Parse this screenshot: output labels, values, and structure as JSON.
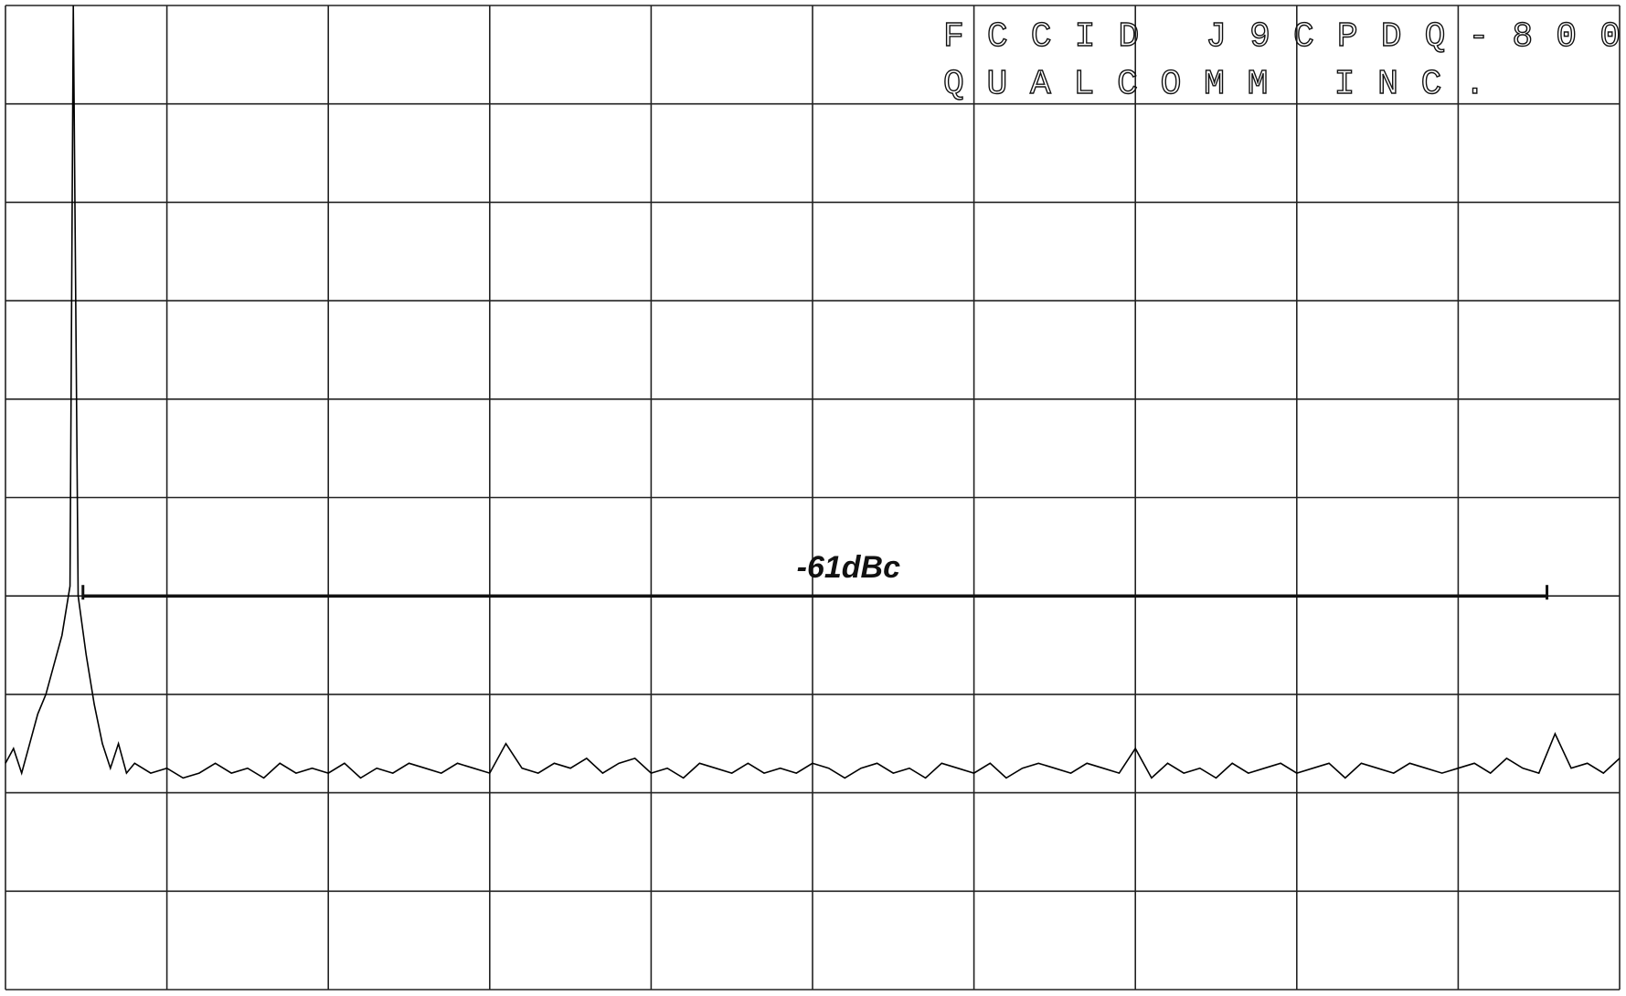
{
  "chart_data": {
    "type": "line",
    "title_lines": [
      "FCCID J9CPDQ-800",
      "QUALCOMM INC."
    ],
    "x": [
      0,
      0.05,
      0.1,
      0.15,
      0.2,
      0.25,
      0.3,
      0.35,
      0.4,
      0.42,
      0.45,
      0.5,
      0.55,
      0.6,
      0.65,
      0.7,
      0.75,
      0.8,
      0.9,
      1.0,
      1.1,
      1.2,
      1.3,
      1.4,
      1.5,
      1.6,
      1.7,
      1.8,
      1.9,
      2.0,
      2.1,
      2.2,
      2.3,
      2.4,
      2.5,
      2.6,
      2.7,
      2.8,
      2.9,
      3.0,
      3.1,
      3.2,
      3.3,
      3.4,
      3.5,
      3.6,
      3.7,
      3.8,
      3.9,
      4.0,
      4.1,
      4.2,
      4.3,
      4.4,
      4.5,
      4.6,
      4.7,
      4.8,
      4.9,
      5.0,
      5.1,
      5.2,
      5.3,
      5.4,
      5.5,
      5.6,
      5.7,
      5.8,
      5.9,
      6.0,
      6.1,
      6.2,
      6.3,
      6.4,
      6.5,
      6.6,
      6.7,
      6.8,
      6.9,
      7.0,
      7.1,
      7.2,
      7.3,
      7.4,
      7.5,
      7.6,
      7.7,
      7.8,
      7.9,
      8.0,
      8.1,
      8.2,
      8.3,
      8.4,
      8.5,
      8.6,
      8.7,
      8.8,
      8.9,
      9.0,
      9.1,
      9.2,
      9.3,
      9.4,
      9.5,
      9.6,
      9.7,
      9.8,
      9.9,
      10.0
    ],
    "values": [
      2.3,
      2.45,
      2.2,
      2.5,
      2.8,
      3.0,
      3.3,
      3.6,
      4.1,
      10,
      4.0,
      3.4,
      2.9,
      2.5,
      2.25,
      2.5,
      2.2,
      2.3,
      2.2,
      2.25,
      2.15,
      2.2,
      2.3,
      2.2,
      2.25,
      2.15,
      2.3,
      2.2,
      2.25,
      2.2,
      2.3,
      2.15,
      2.25,
      2.2,
      2.3,
      2.25,
      2.2,
      2.3,
      2.25,
      2.2,
      2.5,
      2.25,
      2.2,
      2.3,
      2.25,
      2.35,
      2.2,
      2.3,
      2.35,
      2.2,
      2.25,
      2.15,
      2.3,
      2.25,
      2.2,
      2.3,
      2.2,
      2.25,
      2.2,
      2.3,
      2.25,
      2.15,
      2.25,
      2.3,
      2.2,
      2.25,
      2.15,
      2.3,
      2.25,
      2.2,
      2.3,
      2.15,
      2.25,
      2.3,
      2.25,
      2.2,
      2.3,
      2.25,
      2.2,
      2.45,
      2.15,
      2.3,
      2.2,
      2.25,
      2.15,
      2.3,
      2.2,
      2.25,
      2.3,
      2.2,
      2.25,
      2.3,
      2.15,
      2.3,
      2.25,
      2.2,
      2.3,
      2.25,
      2.2,
      2.25,
      2.3,
      2.2,
      2.35,
      2.25,
      2.2,
      2.6,
      2.25,
      2.3,
      2.2,
      2.35
    ],
    "color": "#000000",
    "xlim": [
      0,
      10
    ],
    "ylim": [
      0,
      10
    ],
    "xticks": [
      0,
      1,
      2,
      3,
      4,
      5,
      6,
      7,
      8,
      9,
      10
    ],
    "yticks": [
      0,
      1,
      2,
      3,
      4,
      5,
      6,
      7,
      8,
      9,
      10
    ],
    "grid": true,
    "annotations": [
      {
        "text": "-61dBc",
        "y": 4,
        "x": [
          0.48,
          9.55
        ]
      }
    ]
  }
}
